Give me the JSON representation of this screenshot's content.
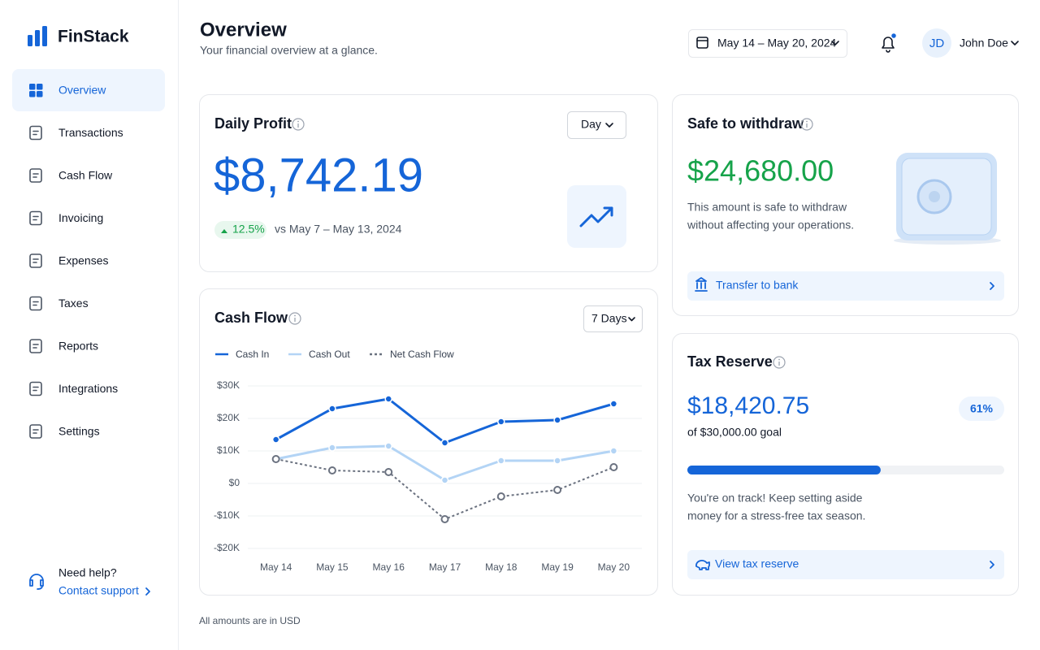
{
  "brand": "FinStack",
  "nav": [
    "Overview",
    "Transactions",
    "Cash Flow",
    "Invoicing",
    "Expenses",
    "Taxes",
    "Reports",
    "Integrations",
    "Settings"
  ],
  "help": {
    "title": "Need help?",
    "link": "Contact support"
  },
  "header": {
    "title": "Overview",
    "subtitle": "Your financial overview at a glance.",
    "date_range": "May 14 – May 20, 2024",
    "avatar": "JD",
    "user": "John Doe"
  },
  "daily_profit": {
    "title": "Daily Profit",
    "period": "Day",
    "amount": "$8,742.19",
    "change": "12.5%",
    "comparison": "vs May 7 – May 13, 2024"
  },
  "safe_to_withdraw": {
    "title": "Safe to withdraw",
    "amount": "$24,680.00",
    "description": [
      "This amount is safe to withdraw",
      "without affecting your operations."
    ],
    "action": "Transfer to bank"
  },
  "tax_reserve": {
    "title": "Tax Reserve",
    "amount": "$18,420.75",
    "goal": "of $30,000.00 goal",
    "progress": {
      "value": 61,
      "label": "61%"
    },
    "message": [
      "You're on track! Keep setting aside",
      "money for a stress-free tax season."
    ],
    "action": "View tax reserve"
  },
  "chart_data": {
    "type": "line",
    "title": "Cash Flow",
    "range": "7 Days",
    "categories": [
      "May 14",
      "May 15",
      "May 16",
      "May 17",
      "May 18",
      "May 19",
      "May 20"
    ],
    "series": [
      {
        "name": "Cash In",
        "color": "#1565d8",
        "values": [
          13500,
          23000,
          26000,
          12500,
          19000,
          19500,
          24500
        ]
      },
      {
        "name": "Cash Out",
        "color": "#b3d4f5",
        "values": [
          7500,
          11000,
          11500,
          1000,
          7000,
          7000,
          10000
        ]
      },
      {
        "name": "Net Cash Flow",
        "color": "#6b7280",
        "dashed": true,
        "values": [
          7500,
          4000,
          3500,
          -11000,
          -4000,
          -2000,
          5000
        ]
      }
    ],
    "ylim": [
      -20000,
      30000
    ],
    "yticks": [
      {
        "value": -20000,
        "label": "-$20K"
      },
      {
        "value": -10000,
        "label": "-$10K"
      },
      {
        "value": 0,
        "label": "$0"
      },
      {
        "value": 10000,
        "label": "$10K"
      },
      {
        "value": 20000,
        "label": "$20K"
      },
      {
        "value": 30000,
        "label": "$30K"
      }
    ],
    "grid": true
  },
  "footer": "All amounts are in USD"
}
